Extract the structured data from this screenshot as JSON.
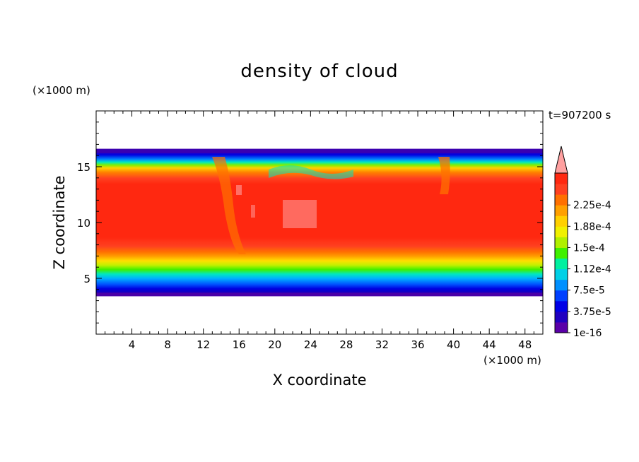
{
  "chart_data": {
    "type": "heatmap",
    "title": "density of cloud",
    "xlabel": "X coordinate",
    "ylabel": "Z coordinate",
    "x_unit": "(×1000 m)",
    "z_unit": "(×1000 m)",
    "time_label": "t=907200 s",
    "xlim": [
      0,
      50
    ],
    "ylim": [
      0,
      20
    ],
    "x_ticks": [
      4,
      8,
      12,
      16,
      20,
      24,
      28,
      32,
      36,
      40,
      44,
      48
    ],
    "y_ticks": [
      5,
      10,
      15
    ],
    "x_tick_labels": [
      "4",
      "8",
      "12",
      "16",
      "20",
      "24",
      "28",
      "32",
      "36",
      "40",
      "44",
      "48"
    ],
    "y_tick_labels": [
      "5",
      "10",
      "15"
    ],
    "colorbar": {
      "labels": [
        "1e-16",
        "3.75e-5",
        "7.5e-5",
        "1.12e-4",
        "1.5e-4",
        "1.88e-4",
        "2.25e-4"
      ],
      "values": [
        1e-16,
        3.75e-05,
        7.5e-05,
        0.000112,
        0.00015,
        0.000188,
        0.000225
      ],
      "colors": [
        "#5a00a8",
        "#2000c0",
        "#0000e6",
        "#0040ff",
        "#0090ff",
        "#00d0e6",
        "#00f0a0",
        "#40f000",
        "#b0f000",
        "#f0f000",
        "#ffd000",
        "#ffa000",
        "#ff7000",
        "#ff4020",
        "#ff2810",
        "#ffa0a0"
      ],
      "extend": "max"
    },
    "cloud_layer": {
      "z_bottom": 3.4,
      "z_top": 16.6,
      "core_bottom": 7.5,
      "core_top": 14.2,
      "core_value_approx": 0.00023
    }
  }
}
